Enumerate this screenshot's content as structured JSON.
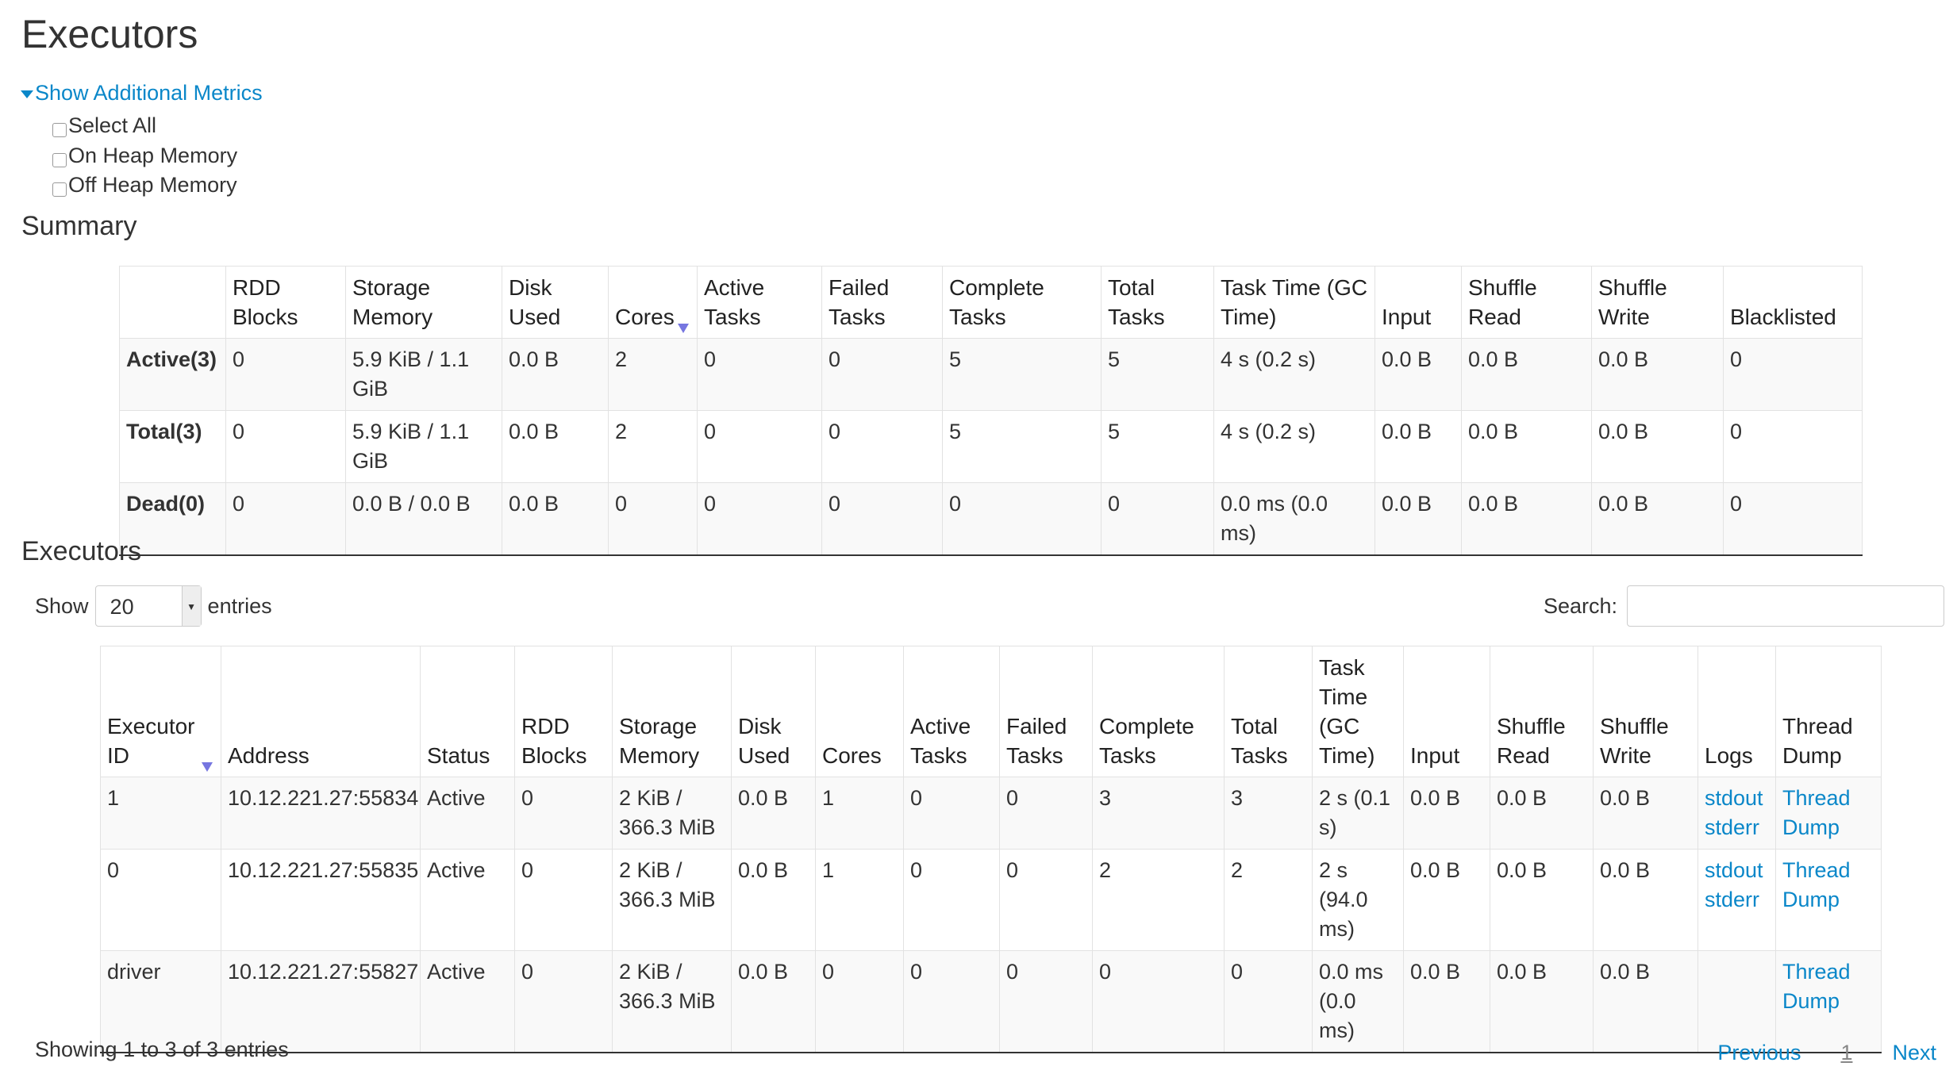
{
  "title": "Executors",
  "metrics": {
    "toggle": "Show Additional Metrics",
    "options": [
      "Select All",
      "On Heap Memory",
      "Off Heap Memory"
    ]
  },
  "summary": {
    "heading": "Summary",
    "headers": [
      "",
      "RDD Blocks",
      "Storage Memory",
      "Disk Used",
      "Cores",
      "Active Tasks",
      "Failed Tasks",
      "Complete Tasks",
      "Total Tasks",
      "Task Time (GC Time)",
      "Input",
      "Shuffle Read",
      "Shuffle Write",
      "Blacklisted"
    ],
    "rows": [
      [
        "Active(3)",
        "0",
        "5.9 KiB / 1.1 GiB",
        "0.0 B",
        "2",
        "0",
        "0",
        "5",
        "5",
        "4 s (0.2 s)",
        "0.0 B",
        "0.0 B",
        "0.0 B",
        "0"
      ],
      [
        "Total(3)",
        "0",
        "5.9 KiB / 1.1 GiB",
        "0.0 B",
        "2",
        "0",
        "0",
        "5",
        "5",
        "4 s (0.2 s)",
        "0.0 B",
        "0.0 B",
        "0.0 B",
        "0"
      ],
      [
        "Dead(0)",
        "0",
        "0.0 B / 0.0 B",
        "0.0 B",
        "0",
        "0",
        "0",
        "0",
        "0",
        "0.0 ms (0.0 ms)",
        "0.0 B",
        "0.0 B",
        "0.0 B",
        "0"
      ]
    ]
  },
  "executors": {
    "heading": "Executors",
    "show_label": "Show",
    "page_size": "20",
    "entries_label": "entries",
    "search_label": "Search:",
    "search_value": "",
    "headers": [
      "Executor ID",
      "Address",
      "Status",
      "RDD Blocks",
      "Storage Memory",
      "Disk Used",
      "Cores",
      "Active Tasks",
      "Failed Tasks",
      "Complete Tasks",
      "Total Tasks",
      "Task Time (GC Time)",
      "Input",
      "Shuffle Read",
      "Shuffle Write",
      "Logs",
      "Thread Dump"
    ],
    "rows": [
      [
        "1",
        "10.12.221.27:55834",
        "Active",
        "0",
        "2 KiB / 366.3 MiB",
        "0.0 B",
        "1",
        "0",
        "0",
        "3",
        "3",
        "2 s (0.1 s)",
        "0.0 B",
        "0.0 B",
        "0.0 B",
        [
          "stdout",
          "stderr"
        ],
        "Thread Dump"
      ],
      [
        "0",
        "10.12.221.27:55835",
        "Active",
        "0",
        "2 KiB / 366.3 MiB",
        "0.0 B",
        "1",
        "0",
        "0",
        "2",
        "2",
        "2 s (94.0 ms)",
        "0.0 B",
        "0.0 B",
        "0.0 B",
        [
          "stdout",
          "stderr"
        ],
        "Thread Dump"
      ],
      [
        "driver",
        "10.12.221.27:55827",
        "Active",
        "0",
        "2 KiB / 366.3 MiB",
        "0.0 B",
        "0",
        "0",
        "0",
        "0",
        "0",
        "0.0 ms (0.0 ms)",
        "0.0 B",
        "0.0 B",
        "0.0 B",
        [],
        "Thread Dump"
      ]
    ],
    "info": "Showing 1 to 3 of 3 entries",
    "pager": {
      "previous": "Previous",
      "current": "1",
      "next": "Next"
    }
  },
  "colors": {
    "link": "#0a87c9",
    "sort_arrow": "#7676e0"
  }
}
